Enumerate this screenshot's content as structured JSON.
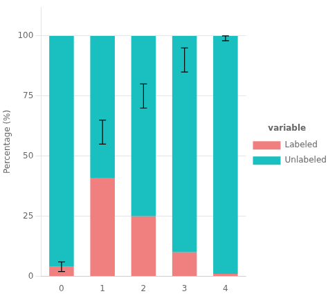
{
  "chart_data": {
    "type": "bar",
    "stacked": true,
    "categories": [
      "0",
      "1",
      "2",
      "3",
      "4"
    ],
    "series": [
      {
        "name": "Labeled",
        "color": "#F08080",
        "values": [
          4,
          41,
          25,
          10,
          1
        ]
      },
      {
        "name": "Unlabeled",
        "color": "#1ABFBF",
        "values": [
          96,
          59,
          75,
          90,
          99
        ]
      }
    ],
    "error_centers": [
      4,
      60,
      75,
      90,
      99
    ],
    "error_values": [
      2,
      5,
      5,
      5,
      1
    ],
    "ylabel": "Percentage (%)",
    "legend_title": "variable",
    "legend": "right",
    "ylim": [
      0,
      112
    ],
    "yticks": [
      0,
      25,
      50,
      75,
      100
    ],
    "grid": true
  }
}
